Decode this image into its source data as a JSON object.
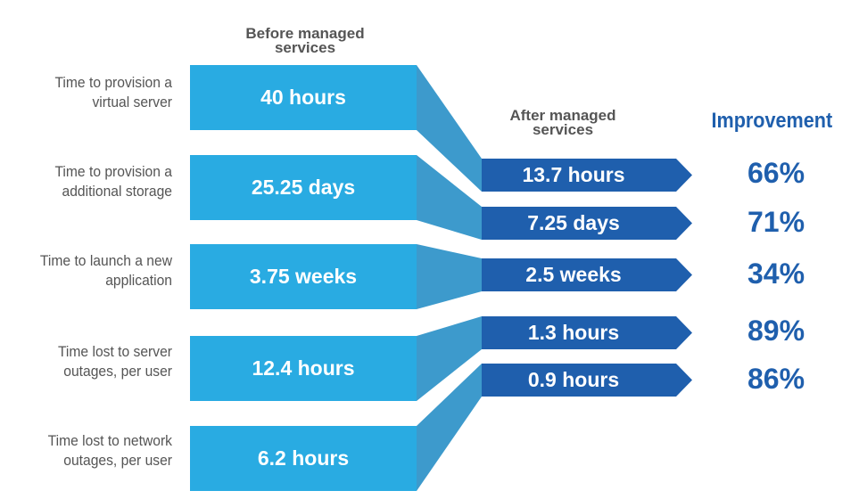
{
  "headers": {
    "before": "Before managed services",
    "after": "After managed services",
    "improvement": "Improvement"
  },
  "rows": [
    {
      "label": "Time to provision a virtual server",
      "before": "40 hours",
      "after": "13.7 hours",
      "improvement": "66%"
    },
    {
      "label": "Time to provision a additional storage",
      "before": "25.25 days",
      "after": "7.25 days",
      "improvement": "71%"
    },
    {
      "label": "Time to launch a new application",
      "before": "3.75 weeks",
      "after": "2.5 weeks",
      "improvement": "34%"
    },
    {
      "label": "Time lost to server outages, per user",
      "before": "12.4 hours",
      "after": "1.3 hours",
      "improvement": "89%"
    },
    {
      "label": "Time lost to network outages, per user",
      "before": "6.2 hours",
      "after": "0.9 hours",
      "improvement": "86%"
    }
  ],
  "colors": {
    "before_box": "#29ABE2",
    "connector": "#3D9ACC",
    "after_box": "#1F5FAD",
    "improvement_text": "#1F5FAD",
    "label_text": "#555555"
  }
}
